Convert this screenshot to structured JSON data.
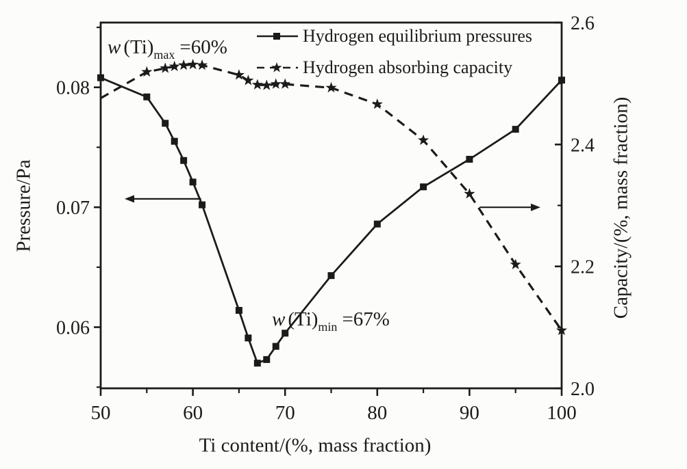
{
  "figure": {
    "ink": "#1b1b1b",
    "background": "#fcfcfa"
  },
  "legend": {
    "items": [
      {
        "label": "Hydrogen equilibrium pressures",
        "line": "solid",
        "marker": "square"
      },
      {
        "label": "Hydrogen absorbing capacity",
        "line": "dashed",
        "marker": "star"
      }
    ]
  },
  "annotations": {
    "max": {
      "prefix": "w",
      "base": "(Ti)",
      "subscript": "max",
      "suffix": "=60%"
    },
    "min": {
      "prefix": "w",
      "base": "(Ti)",
      "subscript": "min",
      "suffix": "=67%"
    }
  },
  "axes": {
    "x_label": "Ti content/(%, mass fraction)",
    "left_label": "Pressure/Pa",
    "right_label": "Capacity/(%, mass fraction)"
  },
  "chart_data": {
    "type": "line",
    "title": "",
    "x": [
      50,
      55,
      57,
      58,
      59,
      60,
      61,
      65,
      66,
      67,
      68,
      69,
      70,
      75,
      80,
      85,
      90,
      95,
      100
    ],
    "series": [
      {
        "name": "Hydrogen equilibrium pressures",
        "axis": "left",
        "style": "solid",
        "marker": "square",
        "skip_first_marker": false,
        "values": [
          0.0808,
          0.0792,
          0.077,
          0.0755,
          0.0739,
          0.0721,
          0.0702,
          0.0614,
          0.0591,
          0.057,
          0.0573,
          0.0584,
          0.0595,
          0.0643,
          0.0686,
          0.0717,
          0.074,
          0.0765,
          0.0806
        ]
      },
      {
        "name": "Hydrogen absorbing capacity",
        "axis": "right",
        "style": "dashed",
        "marker": "star",
        "skip_first_marker": true,
        "values": [
          2.476,
          2.519,
          2.525,
          2.528,
          2.53,
          2.531,
          2.53,
          2.514,
          2.505,
          2.498,
          2.497,
          2.499,
          2.499,
          2.493,
          2.466,
          2.407,
          2.319,
          2.203,
          2.095
        ]
      }
    ],
    "xlim": [
      50,
      100
    ],
    "left_ylim": [
      0.0549,
      0.0854
    ],
    "right_ylim": [
      2.0,
      2.6
    ],
    "x_ticks": [
      50,
      60,
      70,
      80,
      90,
      100
    ],
    "x_minor_ticks": [
      55,
      65,
      75,
      85,
      95
    ],
    "left_ticks": [
      0.08,
      0.07,
      0.06
    ],
    "left_tick_labels": [
      "0.08",
      "0.07",
      "0.06"
    ],
    "left_minor_ticks": [
      0.055,
      0.065,
      0.075,
      0.085
    ],
    "right_ticks": [
      2.6,
      2.4,
      2.2,
      2.0
    ],
    "right_tick_labels": [
      "2.6",
      "2.4",
      "2.2",
      "2.0"
    ],
    "grid": false,
    "legend_position": "top",
    "arrows": [
      {
        "axis": "left",
        "y": 0.0707,
        "x_from": 60.9,
        "x_to": 52.6,
        "direction": "left"
      },
      {
        "axis": "right",
        "y": 2.297,
        "x_from": 91.1,
        "x_to": 97.7,
        "direction": "right"
      }
    ]
  }
}
